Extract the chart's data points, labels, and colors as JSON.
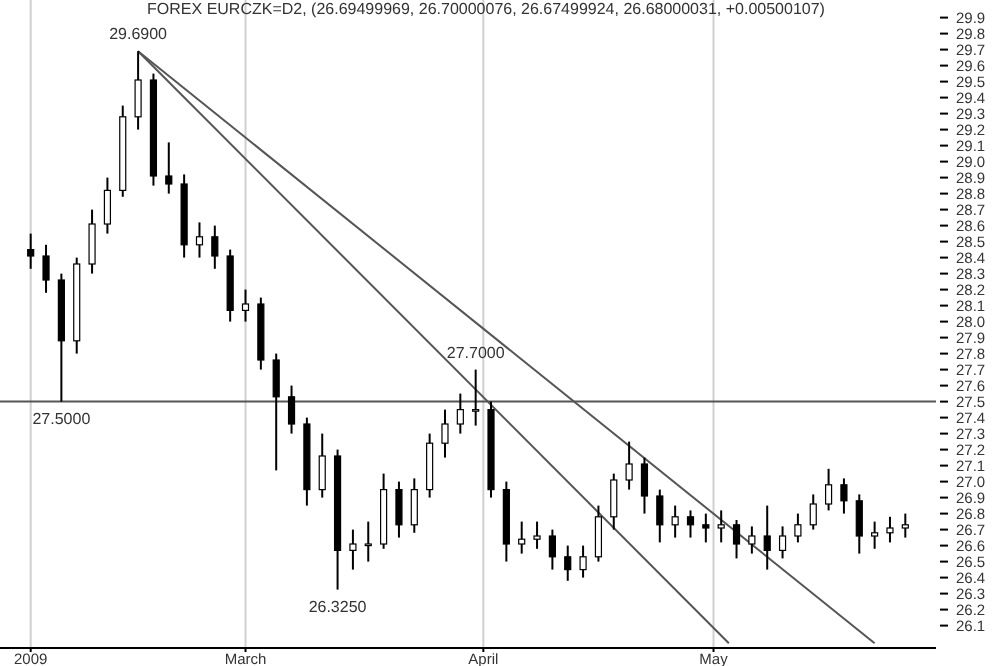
{
  "chart_data": {
    "type": "candlestick",
    "title": "FOREX EURCZK=D2, (26.69499969, 26.70000076, 26.67499924, 26.68000031, +0.00500107)",
    "x": [
      "2009-02-01",
      "2009-02-03",
      "2009-02-05",
      "2009-02-07",
      "2009-02-09",
      "2009-02-11",
      "2009-02-13",
      "2009-02-15",
      "2009-02-17",
      "2009-02-19",
      "2009-02-21",
      "2009-02-23",
      "2009-02-25",
      "2009-02-27",
      "2009-03-01",
      "2009-03-03",
      "2009-03-05",
      "2009-03-07",
      "2009-03-09",
      "2009-03-11",
      "2009-03-13",
      "2009-03-15",
      "2009-03-17",
      "2009-03-19",
      "2009-03-21",
      "2009-03-23",
      "2009-03-25",
      "2009-03-27",
      "2009-03-29",
      "2009-03-31",
      "2009-04-02",
      "2009-04-04",
      "2009-04-06",
      "2009-04-08",
      "2009-04-10",
      "2009-04-12",
      "2009-04-14",
      "2009-04-16",
      "2009-04-18",
      "2009-04-20",
      "2009-04-22",
      "2009-04-24",
      "2009-04-26",
      "2009-04-28",
      "2009-04-30",
      "2009-05-02",
      "2009-05-04",
      "2009-05-06",
      "2009-05-08",
      "2009-05-10",
      "2009-05-12",
      "2009-05-14",
      "2009-05-16",
      "2009-05-18",
      "2009-05-20",
      "2009-05-22",
      "2009-05-24",
      "2009-05-26"
    ],
    "ohlc": [
      [
        28.45,
        28.55,
        28.33,
        28.41
      ],
      [
        28.41,
        28.48,
        28.18,
        28.26
      ],
      [
        28.26,
        28.3,
        27.5,
        27.88
      ],
      [
        27.88,
        28.4,
        27.8,
        28.36
      ],
      [
        28.36,
        28.7,
        28.3,
        28.61
      ],
      [
        28.61,
        28.9,
        28.55,
        28.82
      ],
      [
        28.82,
        29.35,
        28.78,
        29.28
      ],
      [
        29.28,
        29.69,
        29.2,
        29.51
      ],
      [
        29.51,
        29.55,
        28.85,
        28.91
      ],
      [
        28.91,
        29.12,
        28.8,
        28.86
      ],
      [
        28.86,
        28.92,
        28.4,
        28.48
      ],
      [
        28.48,
        28.62,
        28.4,
        28.53
      ],
      [
        28.53,
        28.6,
        28.33,
        28.41
      ],
      [
        28.41,
        28.45,
        28.0,
        28.07
      ],
      [
        28.07,
        28.2,
        28.0,
        28.11
      ],
      [
        28.11,
        28.15,
        27.7,
        27.76
      ],
      [
        27.76,
        27.8,
        27.07,
        27.53
      ],
      [
        27.53,
        27.6,
        27.3,
        27.36
      ],
      [
        27.36,
        27.4,
        26.85,
        26.95
      ],
      [
        26.95,
        27.3,
        26.9,
        27.16
      ],
      [
        27.16,
        27.2,
        26.325,
        26.57
      ],
      [
        26.57,
        26.7,
        26.45,
        26.61
      ],
      [
        26.61,
        26.75,
        26.5,
        26.61
      ],
      [
        26.61,
        27.05,
        26.58,
        26.95
      ],
      [
        26.95,
        27.0,
        26.65,
        26.73
      ],
      [
        26.73,
        27.02,
        26.68,
        26.95
      ],
      [
        26.95,
        27.3,
        26.9,
        27.24
      ],
      [
        27.24,
        27.45,
        27.15,
        27.36
      ],
      [
        27.36,
        27.55,
        27.3,
        27.45
      ],
      [
        27.45,
        27.7,
        27.35,
        27.45
      ],
      [
        27.45,
        27.5,
        26.9,
        26.95
      ],
      [
        26.95,
        27.0,
        26.5,
        26.61
      ],
      [
        26.61,
        26.75,
        26.55,
        26.64
      ],
      [
        26.64,
        26.75,
        26.58,
        26.66
      ],
      [
        26.66,
        26.7,
        26.45,
        26.53
      ],
      [
        26.53,
        26.6,
        26.38,
        26.45
      ],
      [
        26.45,
        26.6,
        26.4,
        26.53
      ],
      [
        26.53,
        26.85,
        26.5,
        26.78
      ],
      [
        26.78,
        27.05,
        26.7,
        27.01
      ],
      [
        27.01,
        27.25,
        26.95,
        27.11
      ],
      [
        27.11,
        27.15,
        26.8,
        26.91
      ],
      [
        26.91,
        26.95,
        26.62,
        26.73
      ],
      [
        26.73,
        26.85,
        26.65,
        26.78
      ],
      [
        26.78,
        26.82,
        26.65,
        26.73
      ],
      [
        26.73,
        26.8,
        26.62,
        26.71
      ],
      [
        26.71,
        26.82,
        26.62,
        26.73
      ],
      [
        26.73,
        26.76,
        26.52,
        26.61
      ],
      [
        26.61,
        26.72,
        26.55,
        26.66
      ],
      [
        26.66,
        26.85,
        26.45,
        26.57
      ],
      [
        26.57,
        26.72,
        26.52,
        26.66
      ],
      [
        26.66,
        26.8,
        26.62,
        26.73
      ],
      [
        26.73,
        26.92,
        26.7,
        26.86
      ],
      [
        26.86,
        27.08,
        26.82,
        26.98
      ],
      [
        26.98,
        27.02,
        26.8,
        26.88
      ],
      [
        26.88,
        26.92,
        26.55,
        26.66
      ],
      [
        26.66,
        26.75,
        26.58,
        26.68
      ],
      [
        26.68,
        26.78,
        26.62,
        26.71
      ],
      [
        26.71,
        26.8,
        26.65,
        26.73
      ]
    ],
    "color": "#000000",
    "series": [
      {
        "type": "line",
        "color": "#555555",
        "x": [
          "2009-02-15",
          "2009-05-03"
        ],
        "values": [
          29.69,
          25.99
        ]
      },
      {
        "type": "line",
        "color": "#555555",
        "x": [
          "2009-02-15",
          "2009-05-22"
        ],
        "values": [
          29.69,
          25.99
        ]
      }
    ],
    "ref_lines": [
      {
        "axis": "y",
        "value": 27.5,
        "color": "#555555"
      }
    ],
    "annotations": [
      {
        "text": "29.6900",
        "x": "2009-02-15",
        "y": 29.69
      },
      {
        "text": "27.5000",
        "x": "2009-02-05",
        "y": 27.5
      },
      {
        "text": "27.7000",
        "x": "2009-03-31",
        "y": 27.7
      },
      {
        "text": "26.3250",
        "x": "2009-03-13",
        "y": 26.325
      }
    ],
    "xlim": [
      "2009-01-28",
      "2009-05-30"
    ],
    "xticks": [
      {
        "value": "2009-02-01",
        "label": "2009"
      },
      {
        "value": "2009-03-01",
        "label": "March"
      },
      {
        "value": "2009-04-01",
        "label": "April"
      },
      {
        "value": "2009-05-01",
        "label": "May"
      }
    ],
    "ylim": [
      25.96,
      30.01
    ],
    "yticks": [
      26.1,
      26.2,
      26.3,
      26.4,
      26.5,
      26.6,
      26.7,
      26.8,
      26.9,
      {
        "value": 27,
        "label": "27.0"
      },
      27.1,
      27.2,
      27.3,
      27.4,
      27.5,
      27.6,
      27.7,
      27.8,
      27.9,
      {
        "value": 28,
        "label": "28.0"
      },
      28.1,
      28.2,
      28.3,
      28.4,
      28.5,
      28.6,
      28.7,
      28.8,
      28.9,
      {
        "value": 29,
        "label": "29.0"
      },
      29.1,
      29.2,
      29.3,
      29.4,
      29.5,
      29.6,
      29.7,
      29.8,
      29.9
    ],
    "grid": "x"
  }
}
